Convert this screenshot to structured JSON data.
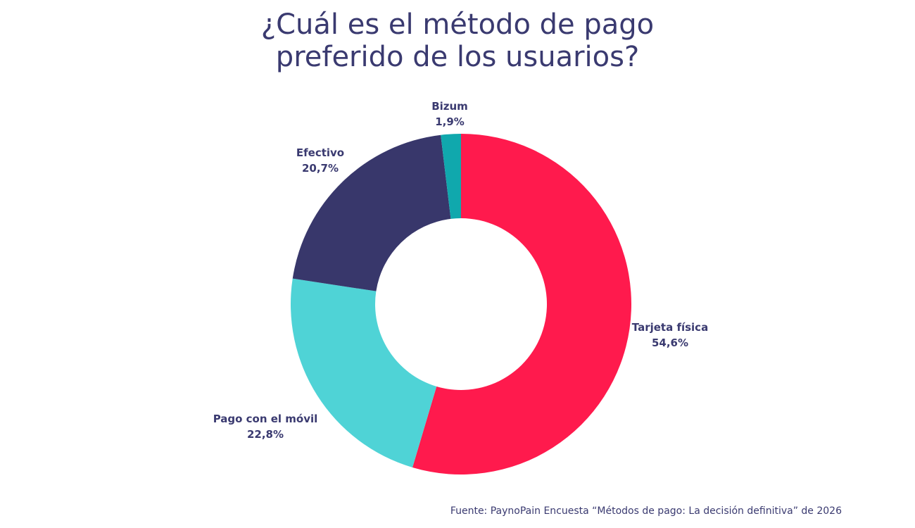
{
  "title_lines": [
    "¿Cuál es el método de pago",
    "preferido de los usuarios?"
  ],
  "source": "Fuente: PaynoPain Encuesta “Métodos de pago: La decisión definitiva” de 2026",
  "chart_data": {
    "type": "pie",
    "donut": true,
    "start_angle_deg": 0,
    "direction": "clockwise",
    "slices": [
      {
        "name": "Tarjeta física",
        "value": 54.6,
        "value_label": "54,6%",
        "color": "#ff1a4d"
      },
      {
        "name": "Pago con el móvil",
        "value": 22.8,
        "value_label": "22,8%",
        "color": "#4fd3d6"
      },
      {
        "name": "Efectivo",
        "value": 20.7,
        "value_label": "20,7%",
        "color": "#38376b"
      },
      {
        "name": "Bizum",
        "value": 1.9,
        "value_label": "1,9%",
        "color": "#10a8ad"
      }
    ],
    "legend": "none",
    "grid": false
  }
}
